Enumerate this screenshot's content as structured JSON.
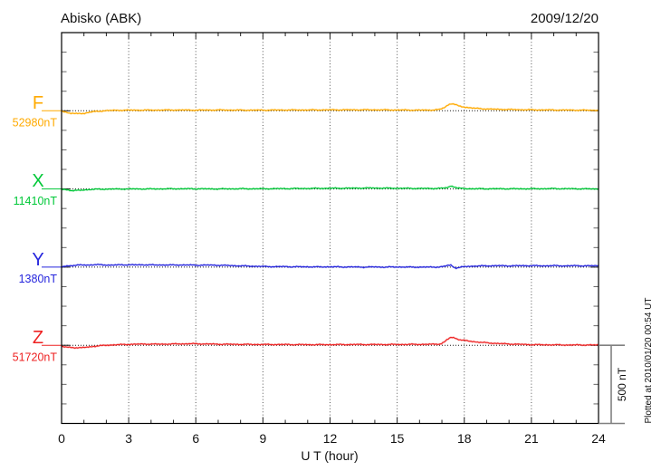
{
  "footnote": "Plotted at 2010/01/20 00:54 UT",
  "chart_data": {
    "type": "line",
    "title": "Abisko (ABK)",
    "date": "2009/12/20",
    "xlabel": "U T (hour)",
    "ylabel": "",
    "x_range": [
      0,
      24
    ],
    "x_ticks": [
      0,
      3,
      6,
      9,
      12,
      15,
      18,
      21,
      24
    ],
    "x_tick_labels": [
      "0",
      "3",
      "6",
      "9",
      "12",
      "15",
      "18",
      "21",
      "24"
    ],
    "minor_x_tick_every_hours": 1,
    "division_nT": 500,
    "scale_bar_label": "500 nT",
    "grid": "dotted vertical lines at 3-hour intervals; dotted horizontal baseline per trace",
    "legend_position": "left margin stacked labels",
    "series": [
      {
        "name": "F",
        "label": "F",
        "baseline_label": "52980nT",
        "baseline_nT": 52980,
        "unit": "nT",
        "color": "#ffaa00",
        "points_hour_dnT": [
          [
            0,
            -4
          ],
          [
            0.2,
            -8
          ],
          [
            0.4,
            -16
          ],
          [
            0.6,
            -19
          ],
          [
            0.8,
            -16
          ],
          [
            1.0,
            -18
          ],
          [
            1.2,
            -10
          ],
          [
            1.5,
            -5
          ],
          [
            2,
            1
          ],
          [
            2.5,
            3
          ],
          [
            3,
            4
          ],
          [
            4,
            4
          ],
          [
            5,
            5
          ],
          [
            6,
            4
          ],
          [
            7,
            5
          ],
          [
            8,
            4
          ],
          [
            9,
            4
          ],
          [
            10,
            5
          ],
          [
            11,
            5
          ],
          [
            12,
            6
          ],
          [
            13,
            6
          ],
          [
            14,
            6
          ],
          [
            15,
            5
          ],
          [
            16,
            4
          ],
          [
            16.6,
            5
          ],
          [
            16.9,
            8
          ],
          [
            17.1,
            20
          ],
          [
            17.3,
            40
          ],
          [
            17.45,
            46
          ],
          [
            17.6,
            40
          ],
          [
            17.75,
            30
          ],
          [
            17.9,
            26
          ],
          [
            18.1,
            22
          ],
          [
            18.4,
            17
          ],
          [
            18.8,
            13
          ],
          [
            19.3,
            10
          ],
          [
            20,
            8
          ],
          [
            21,
            6
          ],
          [
            22,
            5
          ],
          [
            23,
            4
          ],
          [
            24,
            3
          ]
        ]
      },
      {
        "name": "X",
        "label": "X",
        "baseline_label": "11410nT",
        "baseline_nT": 11410,
        "unit": "nT",
        "color": "#00c838",
        "points_hour_dnT": [
          [
            0,
            -2
          ],
          [
            0.3,
            -6
          ],
          [
            0.5,
            -11
          ],
          [
            0.8,
            -9
          ],
          [
            1.1,
            -5
          ],
          [
            1.5,
            -2
          ],
          [
            2,
            -1
          ],
          [
            3,
            0
          ],
          [
            4,
            0
          ],
          [
            5,
            1
          ],
          [
            6,
            1
          ],
          [
            7,
            0
          ],
          [
            8,
            1
          ],
          [
            9,
            1
          ],
          [
            10,
            2
          ],
          [
            11,
            3
          ],
          [
            12,
            4
          ],
          [
            13,
            5
          ],
          [
            13.8,
            6
          ],
          [
            14.5,
            5
          ],
          [
            15.2,
            4
          ],
          [
            16,
            3
          ],
          [
            16.5,
            3
          ],
          [
            17,
            4
          ],
          [
            17.25,
            9
          ],
          [
            17.4,
            19
          ],
          [
            17.55,
            14
          ],
          [
            17.7,
            5
          ],
          [
            18,
            2
          ],
          [
            18.5,
            1
          ],
          [
            19,
            1
          ],
          [
            20,
            1
          ],
          [
            21,
            1
          ],
          [
            22,
            2
          ],
          [
            23,
            1
          ],
          [
            24,
            0
          ]
        ]
      },
      {
        "name": "Y",
        "label": "Y",
        "baseline_label": "1380nT",
        "baseline_nT": 1380,
        "unit": "nT",
        "color": "#2525dd",
        "points_hour_dnT": [
          [
            0,
            1
          ],
          [
            0.2,
            6
          ],
          [
            0.5,
            11
          ],
          [
            0.8,
            13
          ],
          [
            1.2,
            13
          ],
          [
            1.5,
            16
          ],
          [
            1.8,
            14
          ],
          [
            2.2,
            13
          ],
          [
            2.6,
            14
          ],
          [
            3,
            15
          ],
          [
            3.4,
            14
          ],
          [
            3.8,
            15
          ],
          [
            4.2,
            13
          ],
          [
            4.6,
            14
          ],
          [
            5,
            13
          ],
          [
            5.5,
            14
          ],
          [
            6,
            12
          ],
          [
            6.5,
            13
          ],
          [
            7,
            12
          ],
          [
            7.5,
            10
          ],
          [
            8,
            8
          ],
          [
            8.5,
            6
          ],
          [
            9,
            4
          ],
          [
            9.5,
            3
          ],
          [
            10,
            3
          ],
          [
            10.5,
            2
          ],
          [
            11,
            2
          ],
          [
            11.5,
            1
          ],
          [
            12,
            2
          ],
          [
            12.5,
            1
          ],
          [
            13,
            1
          ],
          [
            13.5,
            0
          ],
          [
            14,
            1
          ],
          [
            14.5,
            0
          ],
          [
            15,
            1
          ],
          [
            15.5,
            0
          ],
          [
            16,
            0
          ],
          [
            16.5,
            0
          ],
          [
            16.9,
            1
          ],
          [
            17.1,
            4
          ],
          [
            17.25,
            11
          ],
          [
            17.4,
            13
          ],
          [
            17.5,
            3
          ],
          [
            17.6,
            -6
          ],
          [
            17.75,
            -3
          ],
          [
            17.9,
            1
          ],
          [
            18.2,
            5
          ],
          [
            18.6,
            7
          ],
          [
            19,
            8
          ],
          [
            19.5,
            9
          ],
          [
            20,
            8
          ],
          [
            20.5,
            9
          ],
          [
            21,
            9
          ],
          [
            21.5,
            8
          ],
          [
            22,
            9
          ],
          [
            22.5,
            8
          ],
          [
            23,
            9
          ],
          [
            23.5,
            8
          ],
          [
            24,
            9
          ]
        ]
      },
      {
        "name": "Z",
        "label": "Z",
        "baseline_label": "51720nT",
        "baseline_nT": 51720,
        "unit": "nT",
        "color": "#ee2222",
        "points_hour_dnT": [
          [
            0,
            -9
          ],
          [
            0.3,
            -13
          ],
          [
            0.6,
            -15
          ],
          [
            0.9,
            -16
          ],
          [
            1.2,
            -11
          ],
          [
            1.5,
            -6
          ],
          [
            1.8,
            -2
          ],
          [
            2.2,
            2
          ],
          [
            2.8,
            5
          ],
          [
            3.3,
            7
          ],
          [
            3.8,
            8
          ],
          [
            4.3,
            7
          ],
          [
            4.8,
            8
          ],
          [
            5.4,
            9
          ],
          [
            5.8,
            10
          ],
          [
            6.3,
            9
          ],
          [
            7,
            7
          ],
          [
            8,
            6
          ],
          [
            9,
            5
          ],
          [
            10,
            5
          ],
          [
            11,
            4
          ],
          [
            12,
            4
          ],
          [
            13,
            5
          ],
          [
            14,
            5
          ],
          [
            15,
            5
          ],
          [
            15.8,
            6
          ],
          [
            16.3,
            6
          ],
          [
            16.7,
            7
          ],
          [
            16.95,
            9
          ],
          [
            17.1,
            20
          ],
          [
            17.25,
            38
          ],
          [
            17.4,
            50
          ],
          [
            17.55,
            48
          ],
          [
            17.7,
            40
          ],
          [
            17.85,
            34
          ],
          [
            18,
            31
          ],
          [
            18.2,
            27
          ],
          [
            18.5,
            22
          ],
          [
            18.8,
            18
          ],
          [
            19.2,
            14
          ],
          [
            19.7,
            10
          ],
          [
            20.3,
            7
          ],
          [
            21,
            4
          ],
          [
            21.8,
            3
          ],
          [
            22.5,
            2
          ],
          [
            23.2,
            2
          ],
          [
            24,
            2
          ]
        ]
      }
    ]
  }
}
